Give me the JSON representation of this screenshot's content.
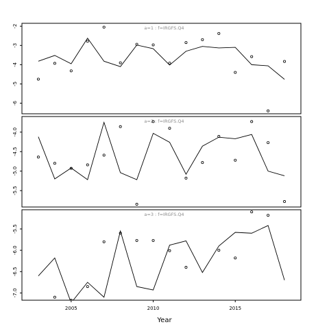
{
  "chart_data": {
    "type": "line",
    "xlabel": "Year",
    "x_ticks": [
      2005,
      2010,
      2015
    ],
    "xlim": [
      2002,
      2019
    ],
    "panels": [
      {
        "title": "a=1 : f=IRGFS.Q4",
        "ylim": [
          -6.55,
          -1.85
        ],
        "y_ticks": [
          -2,
          -3,
          -4,
          -5,
          -6
        ],
        "fitted": {
          "x": [
            2003,
            2004,
            2005,
            2006,
            2007,
            2008,
            2009,
            2010,
            2011,
            2012,
            2013,
            2014,
            2015,
            2016,
            2017,
            2018
          ],
          "y": [
            -3.82,
            -3.52,
            -3.95,
            -2.62,
            -3.82,
            -4.1,
            -2.98,
            -3.17,
            -4.02,
            -3.3,
            -3.05,
            -3.13,
            -3.1,
            -4.0,
            -4.06,
            -4.76
          ]
        },
        "observed": {
          "x": [
            2003,
            2004,
            2005,
            2006,
            2007,
            2008,
            2009,
            2010,
            2011,
            2012,
            2013,
            2014,
            2015,
            2016,
            2017,
            2018
          ],
          "y": [
            -4.75,
            -3.93,
            -4.32,
            -2.78,
            -2.05,
            -3.9,
            -2.94,
            -2.97,
            -3.92,
            -2.85,
            -2.7,
            -2.38,
            -4.4,
            -3.58,
            -6.4,
            -3.83
          ]
        }
      },
      {
        "title": "a=2 : f=IRGFS.Q4",
        "ylim": [
          -5.92,
          -3.6
        ],
        "y_ticks": [
          -4.0,
          -4.5,
          -5.0,
          -5.5
        ],
        "fitted": {
          "x": [
            2003,
            2004,
            2005,
            2006,
            2007,
            2008,
            2009,
            2010,
            2011,
            2012,
            2013,
            2014,
            2015,
            2016,
            2017,
            2018
          ],
          "y": [
            -4.12,
            -5.2,
            -4.92,
            -5.22,
            -3.75,
            -5.04,
            -5.22,
            -4.03,
            -4.26,
            -5.08,
            -4.36,
            -4.13,
            -4.17,
            -4.06,
            -5.0,
            -5.12
          ]
        },
        "observed": {
          "x": [
            2003,
            2004,
            2005,
            2006,
            2007,
            2008,
            2009,
            2010,
            2011,
            2012,
            2013,
            2014,
            2015,
            2016,
            2017,
            2018
          ],
          "y": [
            -4.64,
            -4.8,
            -4.93,
            -4.84,
            -4.59,
            -3.86,
            -5.85,
            -3.73,
            -3.9,
            -5.18,
            -4.78,
            -4.11,
            -4.72,
            -3.73,
            -4.27,
            -5.78
          ]
        }
      },
      {
        "title": "a=3 : f=IRGFS.Q4",
        "ylim": [
          -7.17,
          -5.05
        ],
        "y_ticks": [
          -5.5,
          -6.0,
          -6.5,
          -7.0
        ],
        "fitted": {
          "x": [
            2003,
            2004,
            2005,
            2006,
            2007,
            2008,
            2009,
            2010,
            2011,
            2012,
            2013,
            2014,
            2015,
            2016,
            2017,
            2018
          ],
          "y": [
            -6.6,
            -6.18,
            -7.23,
            -6.75,
            -7.1,
            -5.55,
            -6.85,
            -6.93,
            -5.88,
            -5.78,
            -6.52,
            -5.9,
            -5.58,
            -5.6,
            -5.42,
            -6.7
          ]
        },
        "observed": {
          "x": [
            2004,
            2005,
            2006,
            2007,
            2008,
            2009,
            2010,
            2011,
            2012,
            2014,
            2015,
            2016,
            2017
          ],
          "y": [
            -7.1,
            -7.17,
            -6.85,
            -5.8,
            -5.6,
            -5.77,
            -5.77,
            -6.01,
            -6.4,
            -6.0,
            -6.18,
            -5.1,
            -5.18
          ]
        }
      }
    ]
  }
}
